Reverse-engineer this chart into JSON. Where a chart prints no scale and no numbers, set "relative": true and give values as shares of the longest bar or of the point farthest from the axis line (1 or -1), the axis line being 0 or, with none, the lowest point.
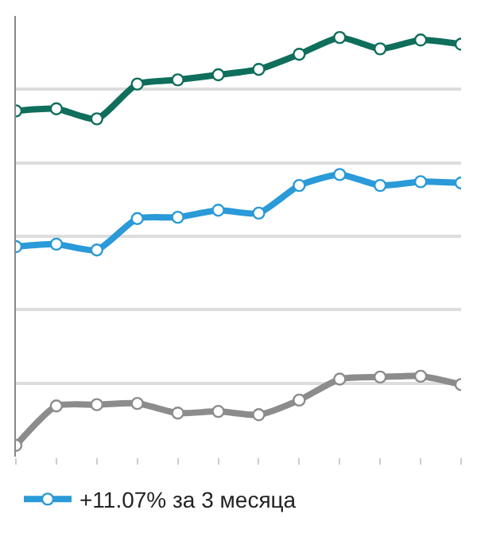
{
  "chart_data": {
    "type": "line",
    "relative": true,
    "categories": [
      null,
      null,
      null,
      null,
      null,
      null,
      null,
      null,
      null,
      null,
      null,
      null
    ],
    "series": [
      {
        "color": "#0f6e5c",
        "values": [
          0.825,
          0.83,
          0.806,
          0.889,
          0.899,
          0.911,
          0.924,
          0.96,
          1,
          0.973,
          0.994,
          0.984
        ]
      },
      {
        "name": "+11.07% за 3 месяца",
        "color": "#2a9ad8",
        "values": [
          0.501,
          0.507,
          0.493,
          0.568,
          0.571,
          0.588,
          0.581,
          0.647,
          0.673,
          0.647,
          0.656,
          0.653
        ]
      },
      {
        "color": "#8c8c8c",
        "values": [
          0.027,
          0.121,
          0.124,
          0.127,
          0.104,
          0.108,
          0.1,
          0.135,
          0.185,
          0.19,
          0.192,
          0.172
        ]
      }
    ],
    "grid": "y",
    "legend": "bottom left",
    "marker": "circle",
    "line_style": "solid"
  }
}
